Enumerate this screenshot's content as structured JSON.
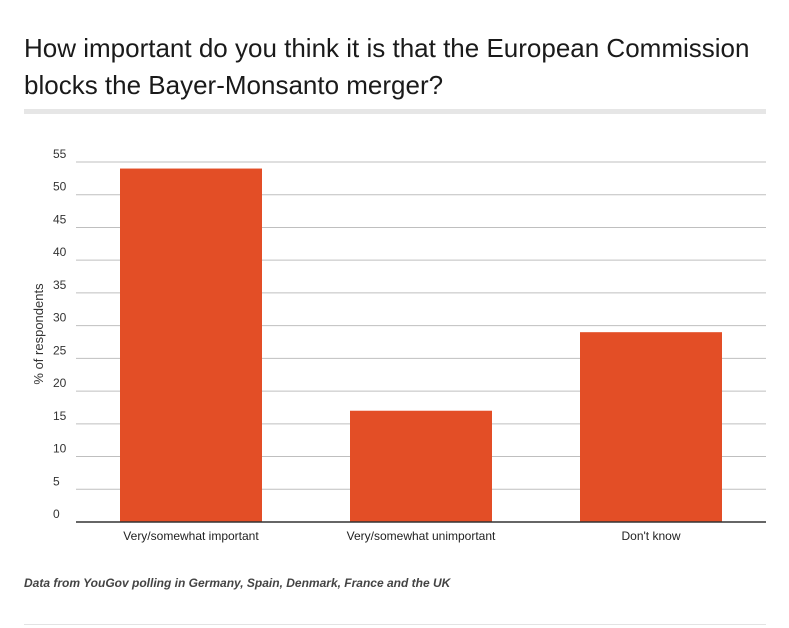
{
  "title": "How important do you think it is that the European Commission blocks the Bayer-Monsanto merger?",
  "source": "Data from YouGov polling in Germany, Spain, Denmark, France and the UK",
  "chart_data": {
    "type": "bar",
    "categories": [
      "Very/somewhat important",
      "Very/somewhat unimportant",
      "Don't know"
    ],
    "values": [
      54,
      17,
      29
    ],
    "ylabel": "% of respondents",
    "ylim": [
      0,
      55
    ],
    "yticks": [
      0,
      5,
      10,
      15,
      20,
      25,
      30,
      35,
      40,
      45,
      50,
      55
    ],
    "grid": true,
    "bar_color": "#e34e26"
  }
}
